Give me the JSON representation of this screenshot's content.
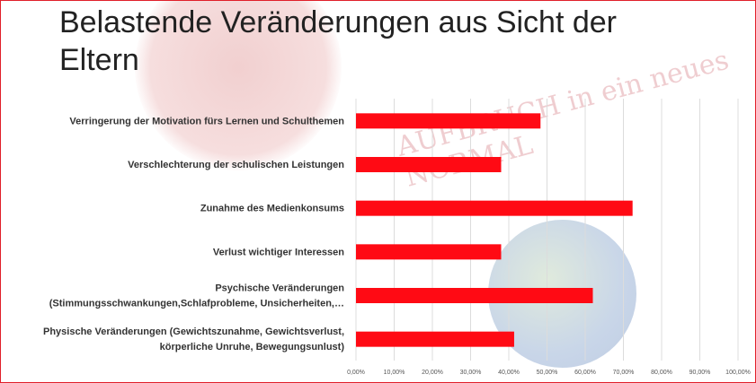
{
  "title": "Belastende Veränderungen aus Sicht der Eltern",
  "watermark": "AUFBRUCH in ein neues NORMAL",
  "chart_data": {
    "type": "bar",
    "orientation": "horizontal",
    "categories": [
      [
        "Verringerung der Motivation fürs Lernen und Schulthemen"
      ],
      [
        "Verschlechterung der schulischen Leistungen"
      ],
      [
        "Zunahme des Medienkonsums"
      ],
      [
        "Verlust wichtiger Interessen"
      ],
      [
        "Psychische Veränderungen",
        "(Stimmungsschwankungen,Schlafprobleme, Unsicherheiten,…"
      ],
      [
        "Physische Veränderungen (Gewichtszunahme, Gewichtsverlust,",
        "körperliche Unruhe, Bewegungsunlust)"
      ]
    ],
    "values": [
      48.3,
      38.0,
      72.4,
      38.0,
      62.0,
      41.4
    ],
    "xlim": [
      0,
      100
    ],
    "xticks": [
      "0,00%",
      "10,00%",
      "20,00%",
      "30,00%",
      "40,00%",
      "50,00%",
      "60,00%",
      "70,00%",
      "80,00%",
      "90,00%",
      "100,00%"
    ],
    "color": "#ff0a14",
    "grid": true,
    "legend": "none"
  }
}
